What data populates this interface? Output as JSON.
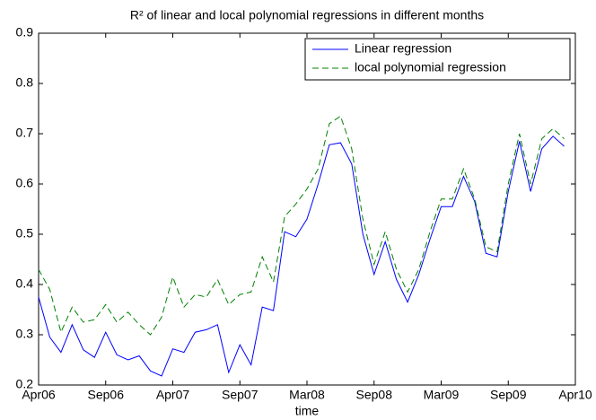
{
  "chart_data": {
    "type": "line",
    "title": "R² of linear and local polynomial regressions in different months",
    "x_label": "time",
    "x": [
      0,
      1,
      2,
      3,
      4,
      5,
      6,
      7,
      8,
      9,
      10,
      11,
      12,
      13,
      14,
      15,
      16,
      17,
      18,
      19,
      20,
      21,
      22,
      23,
      24,
      25,
      26,
      27,
      28,
      29,
      30,
      31,
      32,
      33,
      34,
      35,
      36,
      37,
      38,
      39,
      40,
      41,
      42,
      43,
      44,
      45,
      46,
      47
    ],
    "series": [
      {
        "name": "Linear regression",
        "color": "#0000ff",
        "dash": "solid",
        "values": [
          0.375,
          0.295,
          0.265,
          0.32,
          0.27,
          0.255,
          0.305,
          0.26,
          0.25,
          0.258,
          0.228,
          0.218,
          0.272,
          0.265,
          0.305,
          0.31,
          0.32,
          0.225,
          0.28,
          0.24,
          0.355,
          0.348,
          0.505,
          0.495,
          0.53,
          0.6,
          0.678,
          0.682,
          0.64,
          0.5,
          0.42,
          0.485,
          0.41,
          0.365,
          0.42,
          0.49,
          0.555,
          0.555,
          0.615,
          0.565,
          0.462,
          0.455,
          0.585,
          0.685,
          0.585,
          0.67,
          0.695,
          0.675
        ]
      },
      {
        "name": "local polynomial regression",
        "color": "#008000",
        "dash": "dashed",
        "values": [
          0.43,
          0.39,
          0.305,
          0.355,
          0.325,
          0.33,
          0.36,
          0.325,
          0.345,
          0.32,
          0.3,
          0.335,
          0.415,
          0.355,
          0.38,
          0.375,
          0.41,
          0.36,
          0.38,
          0.385,
          0.455,
          0.405,
          0.535,
          0.56,
          0.59,
          0.63,
          0.72,
          0.735,
          0.67,
          0.53,
          0.44,
          0.505,
          0.43,
          0.385,
          0.43,
          0.505,
          0.57,
          0.57,
          0.63,
          0.57,
          0.475,
          0.465,
          0.6,
          0.7,
          0.6,
          0.69,
          0.71,
          0.69
        ]
      }
    ],
    "xlim": [
      0,
      48
    ],
    "xticks": [
      {
        "value": 0,
        "label": "Apr06"
      },
      {
        "value": 6,
        "label": "Sep06"
      },
      {
        "value": 12,
        "label": "Apr07"
      },
      {
        "value": 18,
        "label": "Sep07"
      },
      {
        "value": 24,
        "label": "Mar08"
      },
      {
        "value": 30,
        "label": "Sep08"
      },
      {
        "value": 36,
        "label": "Mar09"
      },
      {
        "value": 42,
        "label": "Sep09"
      },
      {
        "value": 48,
        "label": "Apr10"
      }
    ],
    "ylim": [
      0.2,
      0.9
    ],
    "yticks": [
      0.2,
      0.3,
      0.4,
      0.5,
      0.6,
      0.7,
      0.8,
      0.9
    ],
    "grid": false,
    "legend": "top-right"
  }
}
